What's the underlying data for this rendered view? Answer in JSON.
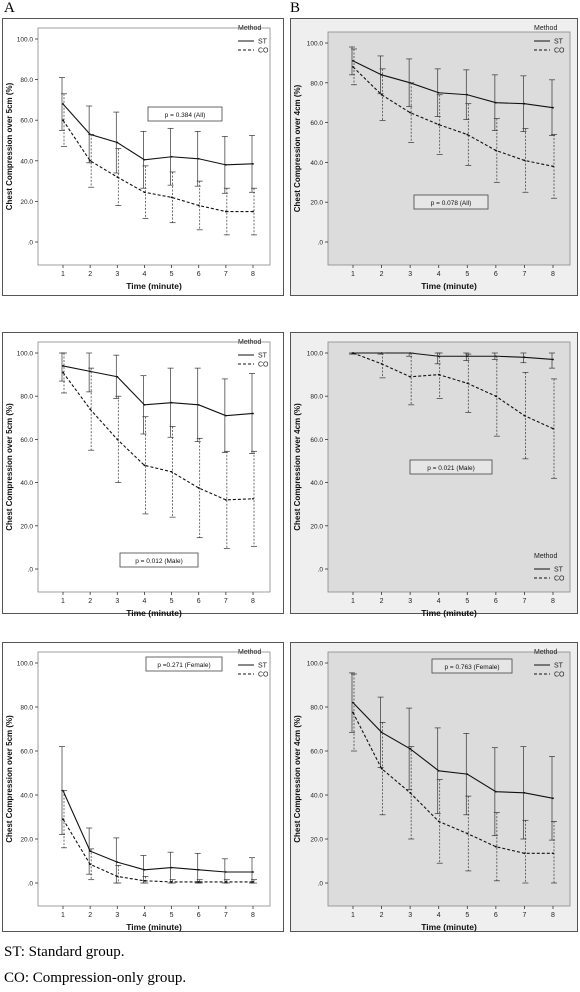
{
  "panel_letters": [
    "A",
    "B"
  ],
  "footnotes": [
    "ST: Standard group.",
    "CO: Compression-only group."
  ],
  "chart_data": [
    {
      "type": "line",
      "panel": "A-top",
      "xlabel": "Time (minute)",
      "ylabel": "Chest Compression over 5cm (%)",
      "x": [
        1,
        2,
        3,
        4,
        5,
        6,
        7,
        8
      ],
      "ylim": [
        0,
        100
      ],
      "yticks": [
        ".0",
        "20.0",
        "40.0",
        "60.0",
        "80.0",
        "100.0"
      ],
      "legend_title": "Method",
      "legend_location": "top-right",
      "annotation": "p = 0.384 (All)",
      "background": "white",
      "series": [
        {
          "name": "ST",
          "style": "solid",
          "values": [
            68,
            53,
            49,
            40.5,
            42,
            41,
            38,
            38.5
          ],
          "error": [
            13,
            14,
            15,
            14,
            14,
            13.5,
            14,
            14
          ]
        },
        {
          "name": "CO",
          "style": "dashed",
          "values": [
            60,
            40,
            32,
            24.5,
            22,
            18,
            15,
            15
          ],
          "error": [
            13,
            13,
            14,
            13,
            12.5,
            12,
            11.5,
            11.5
          ]
        }
      ]
    },
    {
      "type": "line",
      "panel": "B-top",
      "xlabel": "Time (minute)",
      "ylabel": "Chest Compression over 4cm (%)",
      "x": [
        1,
        2,
        3,
        4,
        5,
        6,
        7,
        8
      ],
      "ylim": [
        0,
        100
      ],
      "yticks": [
        ".0",
        "20.0",
        "40.0",
        "60.0",
        "80.0",
        "100.0"
      ],
      "legend_title": "Method",
      "legend_location": "top-right",
      "annotation": "p = 0.078 (All)",
      "background": "gray",
      "series": [
        {
          "name": "ST",
          "style": "solid",
          "values": [
            91,
            84,
            80,
            75,
            74,
            70,
            69.5,
            67.5
          ],
          "error": [
            7,
            9.5,
            12,
            12,
            12.5,
            14,
            14,
            14
          ]
        },
        {
          "name": "CO",
          "style": "dashed",
          "values": [
            88,
            74,
            65,
            59,
            54,
            46,
            41,
            38
          ],
          "error": [
            9,
            13,
            15,
            15,
            15.5,
            16,
            16,
            16
          ]
        }
      ]
    },
    {
      "type": "line",
      "panel": "A-middle",
      "xlabel": "Time (minute)",
      "ylabel": "Chest Compression over 5cm (%)",
      "x": [
        1,
        2,
        3,
        4,
        5,
        6,
        7,
        8
      ],
      "ylim": [
        0,
        100
      ],
      "yticks": [
        ".0",
        "20.0",
        "40.0",
        "60.0",
        "80.0",
        "100.0"
      ],
      "legend_title": "Method",
      "legend_location": "top-right",
      "annotation": "p = 0.012 (Male)",
      "background": "white",
      "series": [
        {
          "name": "ST",
          "style": "solid",
          "values": [
            94,
            91.5,
            89,
            76,
            77,
            76,
            71,
            72
          ],
          "error": [
            7,
            9.5,
            10,
            13.5,
            16,
            17,
            17,
            18.5
          ]
        },
        {
          "name": "CO",
          "style": "dashed",
          "values": [
            91,
            74,
            60,
            48,
            45,
            37.5,
            32,
            32.5
          ],
          "error": [
            9.5,
            19,
            20,
            22.5,
            21,
            23,
            22.5,
            22
          ]
        }
      ]
    },
    {
      "type": "line",
      "panel": "B-middle",
      "xlabel": "Time (minute)",
      "ylabel": "Chest Compression over 4cm (%)",
      "x": [
        1,
        2,
        3,
        4,
        5,
        6,
        7,
        8
      ],
      "ylim": [
        0,
        100
      ],
      "yticks": [
        ".0",
        "20.0",
        "40.0",
        "60.0",
        "80.0",
        "100.0"
      ],
      "legend_title": "Method",
      "legend_location": "bottom-right",
      "annotation": "p = 0.021 (Male)",
      "background": "gray",
      "series": [
        {
          "name": "ST",
          "style": "solid",
          "values": [
            100,
            100,
            100,
            98.5,
            98.5,
            98.5,
            98,
            97
          ],
          "error": [
            0.5,
            0.5,
            1.5,
            3.5,
            2,
            1.5,
            2.5,
            4
          ]
        },
        {
          "name": "CO",
          "style": "dashed",
          "values": [
            100,
            95,
            89,
            90,
            86,
            80,
            71,
            65
          ],
          "error": [
            0.5,
            6.5,
            13,
            11,
            13.5,
            18.5,
            20,
            23
          ]
        }
      ]
    },
    {
      "type": "line",
      "panel": "A-bottom",
      "xlabel": "Time (minute)",
      "ylabel": "Chest Compression over 5cm (%)",
      "x": [
        1,
        2,
        3,
        4,
        5,
        6,
        7,
        8
      ],
      "ylim": [
        0,
        100
      ],
      "yticks": [
        ".0",
        "20.0",
        "40.0",
        "60.0",
        "80.0",
        "100.0"
      ],
      "legend_title": "Method",
      "legend_location": "top-right",
      "annotation": "p =0.271 (Female)",
      "background": "white",
      "series": [
        {
          "name": "ST",
          "style": "solid",
          "values": [
            42,
            14.5,
            9.5,
            6,
            7,
            6,
            5,
            5
          ],
          "error": [
            20,
            10.5,
            11,
            6.5,
            7,
            7.5,
            6,
            6.5
          ]
        },
        {
          "name": "CO",
          "style": "dashed",
          "values": [
            29,
            8.5,
            3,
            1,
            0.5,
            0.5,
            0.5,
            0.5
          ],
          "error": [
            13,
            7,
            5,
            2,
            1,
            1,
            1,
            1
          ]
        }
      ]
    },
    {
      "type": "line",
      "panel": "B-bottom",
      "xlabel": "Time (minute)",
      "ylabel": "Chest Compression over 4cm (%)",
      "x": [
        1,
        2,
        3,
        4,
        5,
        6,
        7,
        8
      ],
      "ylim": [
        0,
        100
      ],
      "yticks": [
        ".0",
        "20.0",
        "40.0",
        "60.0",
        "80.0",
        "100.0"
      ],
      "legend_title": "Method",
      "legend_location": "top-right",
      "annotation": "p = 0.763 (Female)",
      "background": "gray",
      "series": [
        {
          "name": "ST",
          "style": "solid",
          "values": [
            82,
            68.5,
            61,
            51,
            49.5,
            41.5,
            41,
            38.5
          ],
          "error": [
            13.5,
            16,
            18.5,
            19.5,
            18.5,
            20,
            21,
            19
          ]
        },
        {
          "name": "CO",
          "style": "dashed",
          "values": [
            77.5,
            52,
            41,
            28,
            22.5,
            16.5,
            13.5,
            13.5
          ],
          "error": [
            17.5,
            21,
            21,
            19,
            17,
            15.5,
            15,
            14.5
          ]
        }
      ]
    }
  ]
}
